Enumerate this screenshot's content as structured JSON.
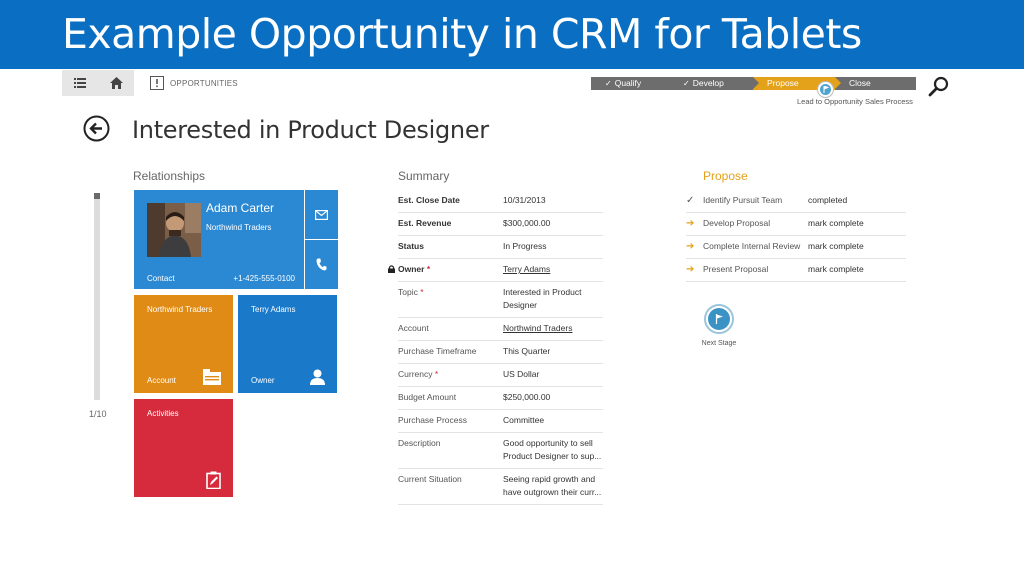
{
  "slide_title": "Example Opportunity in CRM for Tablets",
  "nav": {
    "breadcrumb": "OPPORTUNITIES",
    "icons": [
      "list-icon",
      "home-icon",
      "opportunity-icon",
      "search-icon"
    ]
  },
  "process": {
    "stages": [
      {
        "label": "Qualify",
        "state": "done"
      },
      {
        "label": "Develop",
        "state": "done"
      },
      {
        "label": "Propose",
        "state": "active"
      },
      {
        "label": "Close",
        "state": "future"
      }
    ],
    "name": "Lead to Opportunity Sales Process",
    "stage_color_active": "#e3a21a",
    "stage_color_other": "#6d6d6d"
  },
  "record": {
    "title": "Interested in Product Designer"
  },
  "relationships": {
    "heading": "Relationships",
    "page_count": "1/10",
    "contact": {
      "name": "Adam Carter",
      "company": "Northwind Traders",
      "type": "Contact",
      "phone": "+1-425-555-0100"
    },
    "account_tile": {
      "name": "Northwind Traders",
      "type": "Account",
      "color": "#e08b16"
    },
    "owner_tile": {
      "name": "Terry Adams",
      "type": "Owner",
      "color": "#1a79c9"
    },
    "activities_tile": {
      "name": "Activities",
      "color": "#d62b3c"
    }
  },
  "summary": {
    "heading": "Summary",
    "rows": [
      {
        "label": "Est. Close Date",
        "value": "10/31/2013"
      },
      {
        "label": "Est. Revenue",
        "value": "$300,000.00"
      },
      {
        "label": "Status",
        "value": "In Progress"
      },
      {
        "label": "Owner",
        "value": "Terry Adams"
      },
      {
        "label": "Topic",
        "value": "Interested in Product Designer"
      },
      {
        "label": "Account",
        "value": "Northwind Traders"
      },
      {
        "label": "Purchase Timeframe",
        "value": "This Quarter"
      },
      {
        "label": "Currency",
        "value": "US Dollar"
      },
      {
        "label": "Budget Amount",
        "value": "$250,000.00"
      },
      {
        "label": "Purchase Process",
        "value": "Committee"
      },
      {
        "label": "Description",
        "value": "Good opportunity to sell Product Designer to sup..."
      },
      {
        "label": "Current Situation",
        "value": "Seeing rapid growth and have outgrown their curr..."
      }
    ]
  },
  "stage_steps": {
    "heading": "Propose",
    "steps": [
      {
        "label": "Identify Pursuit Team",
        "value": "completed"
      },
      {
        "label": "Develop Proposal",
        "value": "mark complete"
      },
      {
        "label": "Complete Internal Review",
        "value": "mark complete"
      },
      {
        "label": "Present Proposal",
        "value": "mark complete"
      }
    ],
    "next_stage_label": "Next Stage"
  }
}
